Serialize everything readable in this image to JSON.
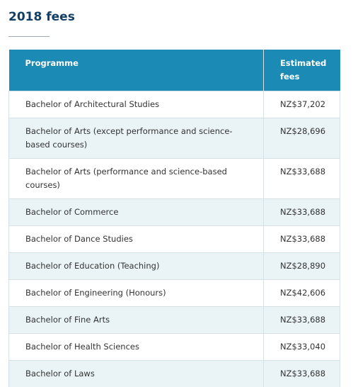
{
  "header": {
    "title": "2018 fees"
  },
  "table": {
    "columns": [
      "Programme",
      "Estimated fees"
    ],
    "rows": [
      [
        "Bachelor of Architectural Studies",
        "NZ$37,202"
      ],
      [
        "Bachelor of Arts (except performance and science-based courses)",
        "NZ$28,696"
      ],
      [
        "Bachelor of Arts (performance and science-based courses)",
        "NZ$33,688"
      ],
      [
        "Bachelor of Commerce",
        "NZ$33,688"
      ],
      [
        "Bachelor of Dance Studies",
        "NZ$33,688"
      ],
      [
        "Bachelor of Education (Teaching)",
        "NZ$28,890"
      ],
      [
        "Bachelor of Engineering (Honours)",
        "NZ$42,606"
      ],
      [
        "Bachelor of Fine Arts",
        "NZ$33,688"
      ],
      [
        "Bachelor of Health Sciences",
        "NZ$33,040"
      ],
      [
        "Bachelor of Laws",
        "NZ$33,688"
      ]
    ]
  }
}
